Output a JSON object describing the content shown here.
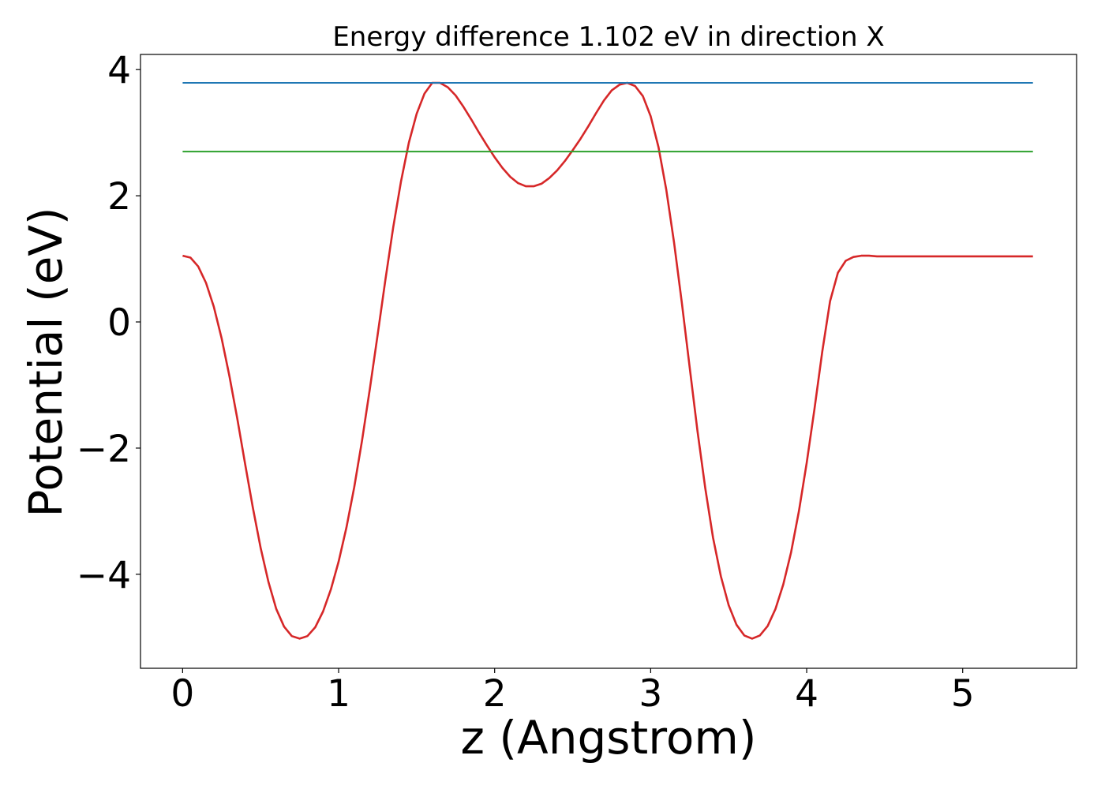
{
  "chart_data": {
    "type": "line",
    "title": "Energy difference 1.102 eV in direction X",
    "xlabel": "z (Angstrom)",
    "ylabel": "Potential (eV)",
    "xlim": [
      -0.27,
      5.73
    ],
    "ylim": [
      -5.49,
      4.24
    ],
    "xticks": [
      0,
      1,
      2,
      3,
      4,
      5
    ],
    "yticks": [
      -4,
      -2,
      0,
      2,
      4
    ],
    "xtick_labels": [
      "0",
      "1",
      "2",
      "3",
      "4",
      "5"
    ],
    "ytick_labels": [
      "−4",
      "−2",
      "0",
      "2",
      "4"
    ],
    "grid": false,
    "legend": false,
    "series": [
      {
        "color": "#d62728",
        "x": [
          0.0,
          0.05,
          0.1,
          0.15,
          0.2,
          0.25,
          0.3,
          0.35,
          0.4,
          0.45,
          0.5,
          0.55,
          0.6,
          0.65,
          0.7,
          0.75,
          0.8,
          0.85,
          0.9,
          0.95,
          1.0,
          1.05,
          1.1,
          1.15,
          1.2,
          1.25,
          1.3,
          1.35,
          1.4,
          1.45,
          1.5,
          1.55,
          1.6,
          1.65,
          1.7,
          1.75,
          1.8,
          1.85,
          1.9,
          1.95,
          2.0,
          2.05,
          2.1,
          2.15,
          2.2,
          2.25,
          2.3,
          2.35,
          2.4,
          2.45,
          2.5,
          2.55,
          2.6,
          2.65,
          2.7,
          2.75,
          2.8,
          2.85,
          2.9,
          2.95,
          3.0,
          3.05,
          3.1,
          3.15,
          3.2,
          3.25,
          3.3,
          3.35,
          3.4,
          3.45,
          3.5,
          3.55,
          3.6,
          3.65,
          3.7,
          3.75,
          3.8,
          3.85,
          3.9,
          3.95,
          4.0,
          4.05,
          4.1,
          4.15,
          4.2,
          4.25,
          4.3,
          4.35,
          4.4,
          4.45,
          4.5,
          4.55,
          4.6,
          4.65,
          4.7,
          4.75,
          4.8,
          4.85,
          4.9,
          4.95,
          5.0,
          5.05,
          5.1,
          5.15,
          5.2,
          5.25,
          5.3,
          5.35,
          5.4,
          5.45
        ],
        "y": [
          1.05,
          1.02,
          0.88,
          0.62,
          0.24,
          -0.26,
          -0.86,
          -1.53,
          -2.24,
          -2.94,
          -3.58,
          -4.12,
          -4.55,
          -4.83,
          -4.98,
          -5.02,
          -4.98,
          -4.84,
          -4.59,
          -4.24,
          -3.8,
          -3.26,
          -2.62,
          -1.88,
          -1.06,
          -0.2,
          0.67,
          1.5,
          2.23,
          2.84,
          3.3,
          3.62,
          3.79,
          3.79,
          3.72,
          3.59,
          3.41,
          3.21,
          3.0,
          2.8,
          2.61,
          2.44,
          2.3,
          2.2,
          2.15,
          2.15,
          2.19,
          2.28,
          2.4,
          2.55,
          2.72,
          2.9,
          3.1,
          3.31,
          3.51,
          3.67,
          3.76,
          3.79,
          3.74,
          3.58,
          3.26,
          2.77,
          2.1,
          1.26,
          0.3,
          -0.72,
          -1.73,
          -2.64,
          -3.42,
          -4.03,
          -4.49,
          -4.8,
          -4.97,
          -5.02,
          -4.97,
          -4.82,
          -4.55,
          -4.16,
          -3.65,
          -3.0,
          -2.24,
          -1.38,
          -0.47,
          0.33,
          0.78,
          0.97,
          1.03,
          1.05,
          1.05,
          1.04,
          1.04,
          1.04,
          1.04,
          1.04,
          1.04,
          1.04,
          1.04,
          1.04,
          1.04,
          1.04,
          1.04,
          1.04,
          1.04,
          1.04,
          1.04,
          1.04,
          1.04,
          1.04,
          1.04,
          1.04
        ]
      },
      {
        "color": "#1f77b4",
        "x": [
          0.0,
          5.45
        ],
        "y": [
          3.79,
          3.79
        ]
      },
      {
        "color": "#2ca02c",
        "x": [
          0.0,
          5.45
        ],
        "y": [
          2.7,
          2.7
        ]
      }
    ]
  }
}
